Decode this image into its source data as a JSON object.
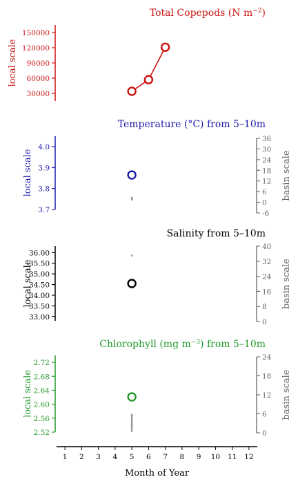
{
  "xaxis": {
    "label": "Month of Year",
    "ticks": [
      1,
      2,
      3,
      4,
      5,
      6,
      7,
      8,
      9,
      10,
      11,
      12
    ],
    "range": [
      0.5,
      12.5
    ]
  },
  "chart_data": [
    {
      "type": "line",
      "title": "Total Copepods (N m",
      "title_sup": "−2",
      "title_close": ")",
      "color": "#cc1111",
      "local_label": "local scale",
      "ylim": [
        15000,
        165000
      ],
      "yticks": [
        30000,
        60000,
        90000,
        120000,
        150000
      ],
      "series": [
        {
          "x": [
            5,
            6,
            7
          ],
          "y": [
            34000,
            57000,
            121000
          ]
        }
      ]
    },
    {
      "type": "scatter",
      "title": "Temperature (°C) from 5–10m",
      "color": "#1a1aaa",
      "local_label": "local scale",
      "basin_label": "basin scale",
      "ylim": [
        3.7,
        4.05
      ],
      "yticks": [
        "3.7",
        "3.8",
        "3.9",
        "4.0"
      ],
      "basin_ylim": [
        -6,
        36
      ],
      "basin_yticks": [
        -6,
        0,
        6,
        12,
        18,
        24,
        30,
        36
      ],
      "series": [
        {
          "x": [
            5
          ],
          "y": [
            3.865
          ]
        }
      ],
      "basin_range": {
        "x": 5,
        "y": [
          1,
          3
        ]
      }
    },
    {
      "type": "scatter",
      "title": "Salinity from 5–10m",
      "color": "#000000",
      "local_label": "local scale",
      "basin_label": "basin scale",
      "ylim": [
        32.8,
        36.3
      ],
      "yticks": [
        "33.00",
        "33.50",
        "34.00",
        "34.50",
        "35.00",
        "35.50",
        "36.00"
      ],
      "basin_ylim": [
        0,
        40
      ],
      "basin_yticks": [
        0,
        8,
        16,
        24,
        32,
        40
      ],
      "series": [
        {
          "x": [
            5
          ],
          "y": [
            34.55
          ]
        }
      ],
      "basin_range": {
        "x": 5,
        "y": [
          34.5,
          35.5
        ]
      }
    },
    {
      "type": "scatter",
      "title": "Chlorophyll (mg m",
      "title_sup": "−3",
      "title_close": ") from 5–10m",
      "color": "#22992a",
      "local_label": "local scale",
      "basin_label": "basin scale",
      "ylim": [
        2.52,
        2.74
      ],
      "yticks": [
        "2.52",
        "2.56",
        "2.60",
        "2.64",
        "2.68",
        "2.72"
      ],
      "basin_ylim": [
        0,
        24
      ],
      "basin_yticks": [
        0,
        6,
        12,
        18,
        24
      ],
      "series": [
        {
          "x": [
            5
          ],
          "y": [
            2.621
          ]
        }
      ],
      "basin_range": {
        "x": 5,
        "y": [
          0.3,
          6
        ]
      }
    }
  ]
}
